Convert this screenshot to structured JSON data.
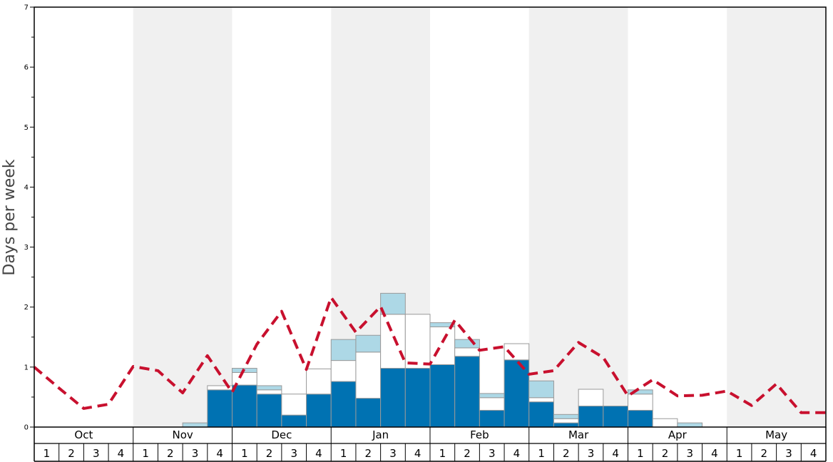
{
  "chart_data": {
    "type": "bar",
    "ylabel": "Days per week",
    "ylim": [
      0,
      7
    ],
    "yticks": [
      "0",
      "1",
      "2",
      "3",
      "4",
      "5",
      "6",
      "7"
    ],
    "months": [
      "Oct",
      "Nov",
      "Dec",
      "Jan",
      "Feb",
      "Mar",
      "Apr",
      "May"
    ],
    "weeks": [
      "1",
      "2",
      "3",
      "4"
    ],
    "colors": {
      "dark": "#0072b2",
      "white": "#ffffff",
      "light": "#add8e6",
      "line": "#c8102e",
      "band": "#f0f0f0",
      "bar_edge": "#999999"
    },
    "stacked_series": [
      {
        "values": [
          0,
          0,
          0,
          0,
          0,
          0,
          0,
          0.62,
          0.7,
          0.55,
          0.2,
          0.55,
          0.76,
          0.48,
          0.98,
          0.98,
          1.04,
          1.18,
          0.28,
          1.12,
          0.42,
          0.07,
          0.35,
          0.35,
          0.28,
          0,
          0,
          0,
          0,
          0,
          0,
          0
        ]
      },
      {
        "values": [
          0,
          0,
          0,
          0,
          0,
          0,
          0,
          0.07,
          0.21,
          0.07,
          0.35,
          0.42,
          0.35,
          0.77,
          0.9,
          0.9,
          0.63,
          0.14,
          0.21,
          0.27,
          0.07,
          0.07,
          0.28,
          0,
          0.27,
          0.14,
          0,
          0,
          0,
          0,
          0,
          0
        ]
      },
      {
        "values": [
          0,
          0,
          0,
          0,
          0,
          0,
          0.07,
          0,
          0.07,
          0.07,
          0,
          0,
          0.35,
          0.28,
          0.35,
          0,
          0.07,
          0.14,
          0.07,
          0,
          0.28,
          0.07,
          0,
          0,
          0.07,
          0,
          0.07,
          0,
          0,
          0,
          0,
          0
        ]
      }
    ],
    "line": {
      "values": [
        1.0,
        0.65,
        0.31,
        0.38,
        1.01,
        0.94,
        0.57,
        1.19,
        0.58,
        1.38,
        1.93,
        0.96,
        2.16,
        1.58,
        2.01,
        1.07,
        1.05,
        1.78,
        1.28,
        1.34,
        0.88,
        0.94,
        1.41,
        1.16,
        0.52,
        0.79,
        0.52,
        0.53,
        0.6,
        0.36,
        0.72,
        0.24,
        0.24
      ]
    }
  }
}
